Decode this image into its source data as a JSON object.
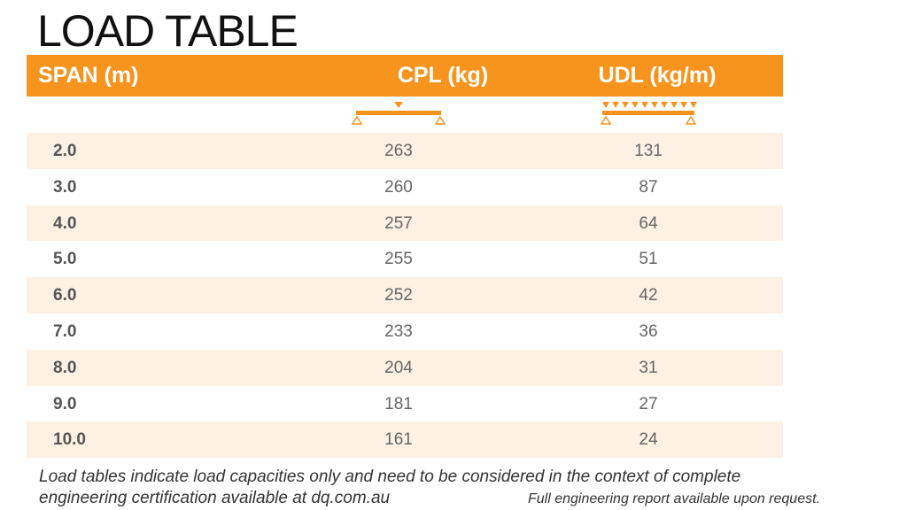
{
  "title": "LOAD TABLE",
  "header": {
    "span": "SPAN (m)",
    "cpl": "CPL (kg)",
    "udl": "UDL (kg/m)"
  },
  "icons": {
    "cpl": "point-load-beam-icon",
    "udl": "distributed-load-beam-icon"
  },
  "colors": {
    "accent": "#f7941e",
    "row_shade": "#fdf1e4"
  },
  "rows": [
    {
      "span": "2.0",
      "cpl": "263",
      "udl": "131"
    },
    {
      "span": "3.0",
      "cpl": "260",
      "udl": "87"
    },
    {
      "span": "4.0",
      "cpl": "257",
      "udl": "64"
    },
    {
      "span": "5.0",
      "cpl": "255",
      "udl": "51"
    },
    {
      "span": "6.0",
      "cpl": "252",
      "udl": "42"
    },
    {
      "span": "7.0",
      "cpl": "233",
      "udl": "36"
    },
    {
      "span": "8.0",
      "cpl": "204",
      "udl": "31"
    },
    {
      "span": "9.0",
      "cpl": "181",
      "udl": "27"
    },
    {
      "span": "10.0",
      "cpl": "161",
      "udl": "24"
    }
  ],
  "footnote": "Load tables indicate load capacities only and need to be considered in the context of complete engineering certification available at dq.com.au",
  "footnote_right": "Full engineering report available upon request."
}
